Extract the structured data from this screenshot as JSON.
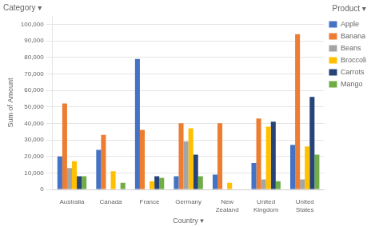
{
  "chart_data": {
    "type": "bar",
    "annotations": [
      "Category ▾"
    ],
    "ylabel": "Sum of Amount",
    "xlabel": "Country ▾",
    "legend_title": "Product ▾",
    "categories": [
      "Australia",
      "Canada",
      "France",
      "Germany",
      "New\nZealand",
      "United\nKingdom",
      "United\nStates"
    ],
    "series": [
      {
        "name": "Apple",
        "color": "#4472C4",
        "values": [
          20000,
          24000,
          79000,
          8000,
          9000,
          16000,
          27000
        ]
      },
      {
        "name": "Banana",
        "color": "#ED7D31",
        "values": [
          52000,
          33000,
          36000,
          40000,
          40000,
          43000,
          94000
        ]
      },
      {
        "name": "Beans",
        "color": "#A5A5A5",
        "values": [
          13000,
          0,
          0,
          29000,
          0,
          6000,
          6000
        ]
      },
      {
        "name": "Broccoli",
        "color": "#FFC000",
        "values": [
          17000,
          11000,
          5000,
          37000,
          4000,
          38000,
          26000
        ]
      },
      {
        "name": "Carrots",
        "color": "#264478",
        "values": [
          8000,
          0,
          8000,
          21000,
          0,
          41000,
          56000
        ]
      },
      {
        "name": "Mango",
        "color": "#70AD47",
        "values": [
          8000,
          4000,
          7000,
          8000,
          0,
          5000,
          21000
        ]
      }
    ],
    "ylim": [
      0,
      105000
    ],
    "yticks": [
      0,
      {
        "value": 10000,
        "label": "10,000"
      },
      {
        "value": 20000,
        "label": "20,000"
      },
      {
        "value": 30000,
        "label": "30,000"
      },
      {
        "value": 40000,
        "label": "40,000"
      },
      {
        "value": 50000,
        "label": "50,000"
      },
      {
        "value": 60000,
        "label": "60,000"
      },
      {
        "value": 70000,
        "label": "70,000"
      },
      {
        "value": 80000,
        "label": "80,000"
      },
      {
        "value": 90000,
        "label": "90,000"
      },
      {
        "value": 100000,
        "label": "100,000"
      }
    ],
    "grid": true,
    "legend": "right"
  }
}
